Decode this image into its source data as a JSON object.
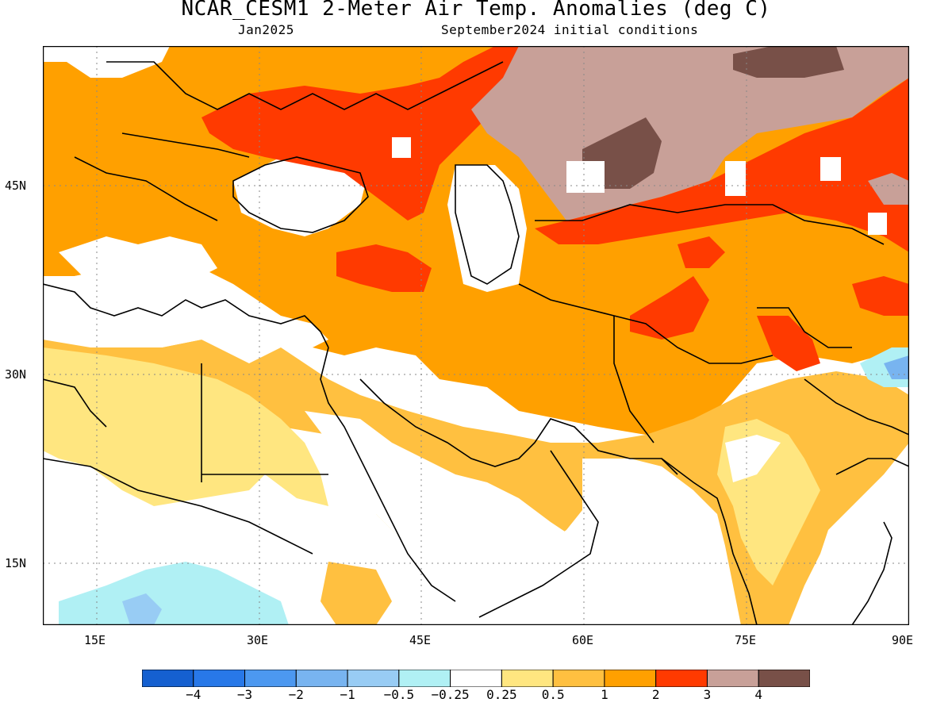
{
  "title": "NCAR_CESM1 2-Meter Air Temp. Anomalies (deg C)",
  "subtitle_left": "Jan2025",
  "subtitle_right": "September2024 initial conditions",
  "map": {
    "lon_range": [
      10,
      90
    ],
    "lat_range": [
      10,
      55
    ],
    "lat_ticks": [
      {
        "value": 45,
        "label": "45N"
      },
      {
        "value": 30,
        "label": "30N"
      },
      {
        "value": 15,
        "label": "15N"
      }
    ],
    "lon_ticks": [
      {
        "value": 15,
        "label": "15E"
      },
      {
        "value": 30,
        "label": "30E"
      },
      {
        "value": 45,
        "label": "45E"
      },
      {
        "value": 60,
        "label": "60E"
      },
      {
        "value": 75,
        "label": "75E"
      },
      {
        "value": 90,
        "label": "90E"
      }
    ]
  },
  "colorbar": {
    "colors": [
      "#1560d0",
      "#2878e8",
      "#4c98f0",
      "#78b4f0",
      "#98ccf4",
      "#b0f0f4",
      "#ffffff",
      "#ffe680",
      "#ffc040",
      "#ffa000",
      "#ff3a00",
      "#c8a098",
      "#785048"
    ],
    "labels": [
      "−4",
      "−3",
      "−2",
      "−1",
      "−0.5",
      "−0.25",
      "0.25",
      "0.5",
      "1",
      "2",
      "3",
      "4"
    ]
  },
  "colors": {
    "anom_0_25_0_5": "#ffe680",
    "anom_0_5_1": "#ffc040",
    "anom_1_2": "#ffa000",
    "anom_2_3": "#ff3a00",
    "anom_3_4": "#c8a098",
    "anom_gt_4": "#785048",
    "anom_neg_0_25_0_5": "#b0f0f4",
    "anom_neg_0_5_1": "#98ccf4",
    "anom_neg_1_2": "#78b4f0"
  }
}
